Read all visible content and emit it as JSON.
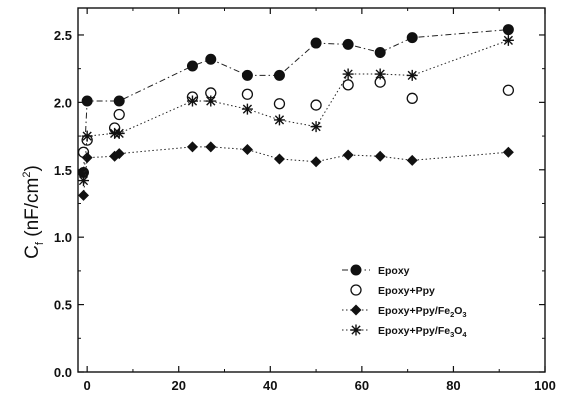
{
  "chart_data": {
    "type": "scatter",
    "title": "",
    "xlabel": "",
    "ylabel": {
      "main": "C",
      "subscript": "f",
      "units_pre": " (nF/cm",
      "units_sup": "2",
      "units_post": ")"
    },
    "xlim": [
      -2,
      100
    ],
    "ylim": [
      0.0,
      2.7
    ],
    "xticks": [
      0,
      20,
      40,
      60,
      80,
      100
    ],
    "yticks": [
      0.0,
      0.5,
      1.0,
      1.5,
      2.0,
      2.5
    ],
    "grid": false,
    "legend_position": "lower-right",
    "series": [
      {
        "name": "Epoxy",
        "marker": "filled-circle",
        "line": "dash-dot",
        "x": [
          -0.8,
          0,
          7,
          23,
          27,
          35,
          42,
          50,
          57,
          64,
          71,
          92
        ],
        "y": [
          1.48,
          2.01,
          2.01,
          2.27,
          2.32,
          2.2,
          2.2,
          2.44,
          2.43,
          2.37,
          2.48,
          2.54
        ]
      },
      {
        "name": "Epoxy+Ppy",
        "marker": "open-circle",
        "line": "none",
        "x": [
          -0.8,
          0,
          6,
          7,
          23,
          27,
          35,
          42,
          50,
          57,
          64,
          71,
          92
        ],
        "y": [
          1.63,
          1.72,
          1.81,
          1.91,
          2.04,
          2.07,
          2.06,
          1.99,
          1.98,
          2.13,
          2.15,
          2.03,
          2.09
        ]
      },
      {
        "name": "Epoxy+Ppy/Fe2O3",
        "label_parts": [
          "Epoxy+Ppy/Fe",
          "2",
          "O",
          "3"
        ],
        "marker": "filled-diamond",
        "line": "dotted",
        "x": [
          -0.8,
          0,
          6,
          7,
          23,
          27,
          35,
          42,
          50,
          57,
          64,
          71,
          92
        ],
        "y": [
          1.31,
          1.59,
          1.6,
          1.62,
          1.67,
          1.67,
          1.65,
          1.58,
          1.56,
          1.61,
          1.6,
          1.57,
          1.63
        ]
      },
      {
        "name": "Epoxy+Ppy/Fe3O4",
        "label_parts": [
          "Epoxy+Ppy/Fe",
          "3",
          "O",
          "4"
        ],
        "marker": "asterisk",
        "line": "dotted",
        "x": [
          -0.8,
          0,
          6,
          7,
          23,
          27,
          35,
          42,
          50,
          57,
          64,
          71,
          92
        ],
        "y": [
          1.42,
          1.75,
          1.77,
          1.77,
          2.01,
          2.01,
          1.95,
          1.87,
          1.82,
          2.21,
          2.21,
          2.2,
          2.46
        ]
      }
    ]
  }
}
